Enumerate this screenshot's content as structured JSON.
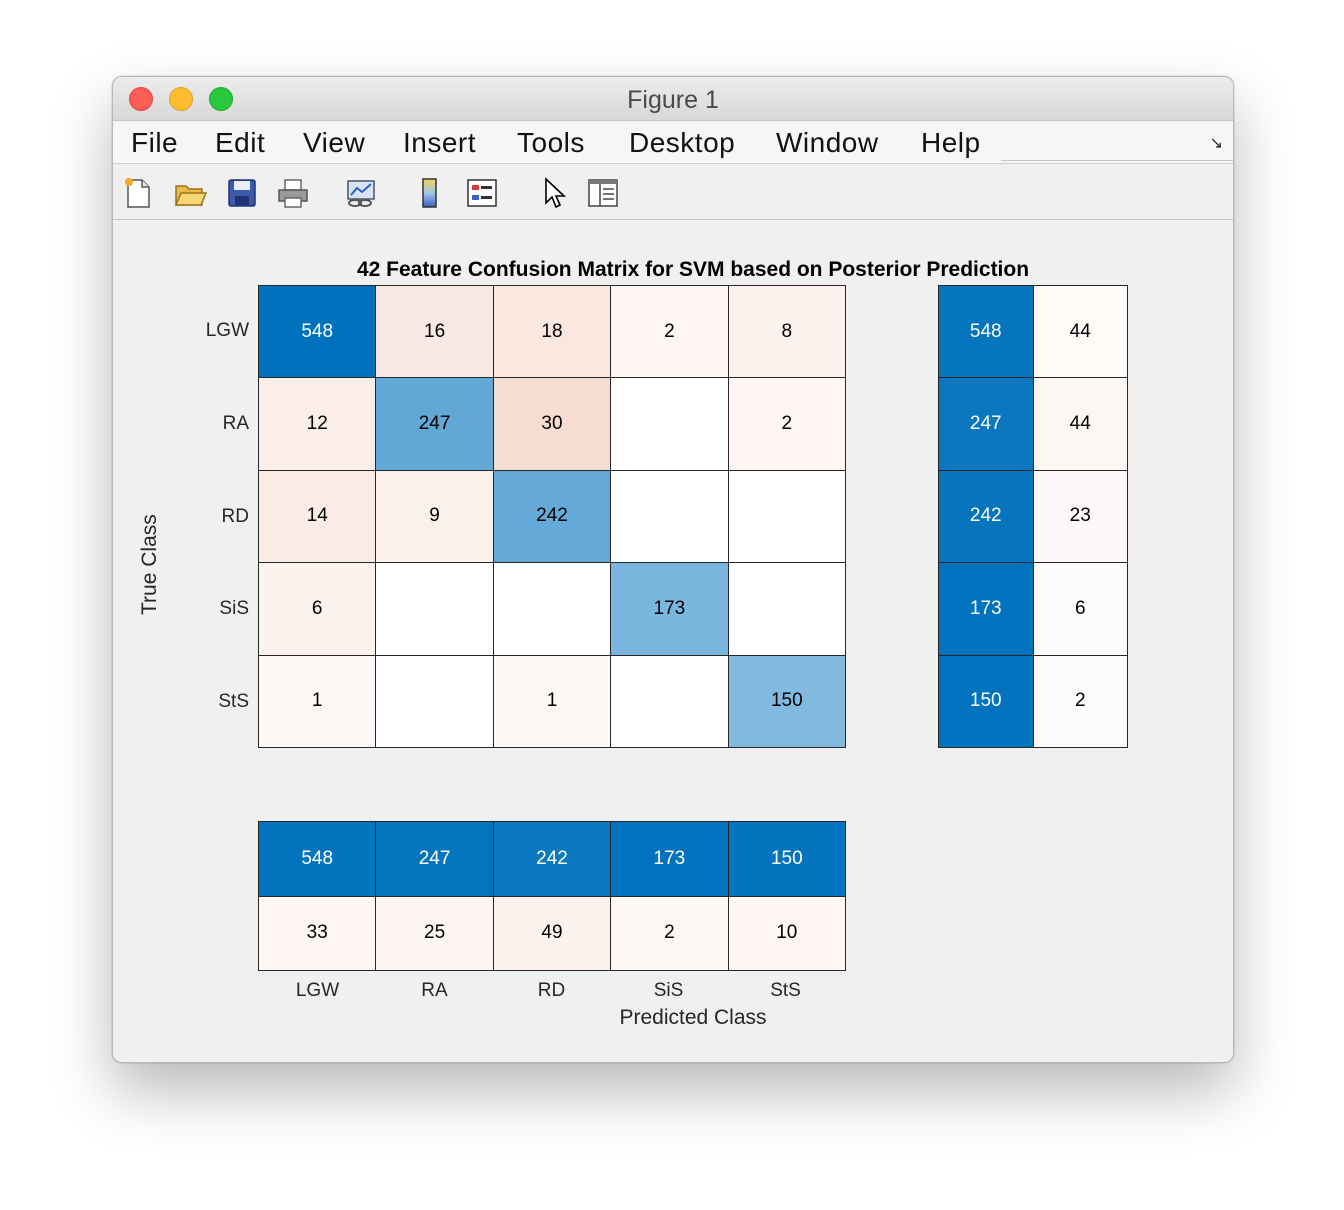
{
  "window": {
    "title": "Figure 1"
  },
  "menu": [
    "File",
    "Edit",
    "View",
    "Insert",
    "Tools",
    "Desktop",
    "Window",
    "Help"
  ],
  "toolbar": [
    "new-figure-icon",
    "open-folder-icon",
    "save-icon",
    "print-icon",
    "link-plot-icon",
    "colorbar-icon",
    "legend-icon",
    "pointer-icon",
    "property-inspector-icon"
  ],
  "chart_data": {
    "type": "heatmap",
    "title": "42 Feature Confusion Matrix for SVM based on Posterior Prediction",
    "xlabel": "Predicted Class",
    "ylabel": "True Class",
    "classes": [
      "LGW",
      "RA",
      "RD",
      "SiS",
      "StS"
    ],
    "matrix": [
      [
        548,
        16,
        18,
        2,
        8
      ],
      [
        12,
        247,
        30,
        null,
        2
      ],
      [
        14,
        9,
        242,
        null,
        null
      ],
      [
        6,
        null,
        null,
        173,
        null
      ],
      [
        1,
        null,
        1,
        null,
        150
      ]
    ],
    "row_summary": [
      [
        548,
        44
      ],
      [
        247,
        44
      ],
      [
        242,
        23
      ],
      [
        173,
        6
      ],
      [
        150,
        2
      ]
    ],
    "column_summary": [
      [
        548,
        247,
        242,
        173,
        150
      ],
      [
        33,
        25,
        49,
        2,
        10
      ]
    ],
    "colors": {
      "correct": "#0072bd",
      "incorrect": "#d95319",
      "background": "#ffffff"
    }
  }
}
